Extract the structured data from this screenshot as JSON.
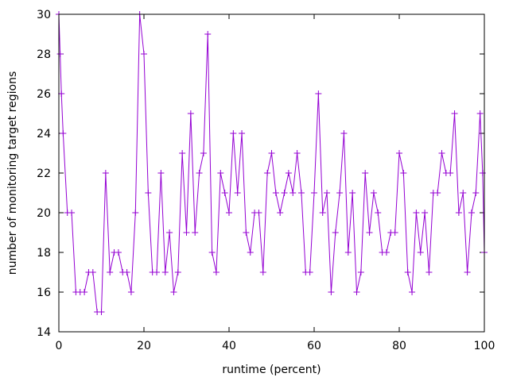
{
  "chart_data": {
    "type": "line",
    "title": "",
    "xlabel": "runtime (percent)",
    "ylabel": "number of monitoring target regions",
    "xlim": [
      0,
      100
    ],
    "ylim": [
      14,
      30
    ],
    "xticks": [
      0,
      20,
      40,
      60,
      80,
      100
    ],
    "yticks": [
      14,
      16,
      18,
      20,
      22,
      24,
      26,
      28,
      30
    ],
    "grid": false,
    "legend": "none",
    "marker": "plus",
    "series": [
      {
        "color": "#9400d3",
        "x": [
          0,
          0.3,
          0.6,
          1,
          2,
          3,
          4,
          5,
          6,
          7,
          8,
          9,
          10,
          11,
          12,
          13,
          14,
          15,
          16,
          17,
          18,
          19,
          20,
          21,
          22,
          23,
          24,
          25,
          26,
          27,
          28,
          29,
          30,
          31,
          32,
          33,
          34,
          35,
          36,
          37,
          38,
          39,
          40,
          41,
          42,
          43,
          44,
          45,
          46,
          47,
          48,
          49,
          50,
          51,
          52,
          53,
          54,
          55,
          56,
          57,
          58,
          59,
          60,
          61,
          62,
          63,
          64,
          65,
          66,
          67,
          68,
          69,
          70,
          71,
          72,
          73,
          74,
          75,
          76,
          77,
          78,
          79,
          80,
          81,
          82,
          83,
          84,
          85,
          86,
          87,
          88,
          89,
          90,
          91,
          92,
          93,
          94,
          95,
          96,
          97,
          98,
          99,
          99.6,
          100
        ],
        "y": [
          30,
          28,
          26,
          24,
          20,
          20,
          16,
          16,
          16,
          17,
          17,
          15,
          15,
          22,
          17,
          18,
          18,
          17,
          17,
          16,
          20,
          30,
          28,
          21,
          17,
          17,
          22,
          17,
          19,
          16,
          17,
          23,
          19,
          25,
          19,
          22,
          23,
          29,
          18,
          17,
          22,
          21,
          20,
          24,
          21,
          24,
          19,
          18,
          20,
          20,
          17,
          22,
          23,
          21,
          20,
          21,
          22,
          21,
          23,
          21,
          17,
          17,
          21,
          26,
          20,
          21,
          16,
          19,
          21,
          24,
          18,
          21,
          16,
          17,
          22,
          19,
          21,
          20,
          18,
          18,
          19,
          19,
          23,
          22,
          17,
          16,
          20,
          18,
          20,
          17,
          21,
          21,
          23,
          22,
          22,
          25,
          20,
          21,
          17,
          20,
          21,
          25,
          22,
          18
        ]
      }
    ]
  }
}
